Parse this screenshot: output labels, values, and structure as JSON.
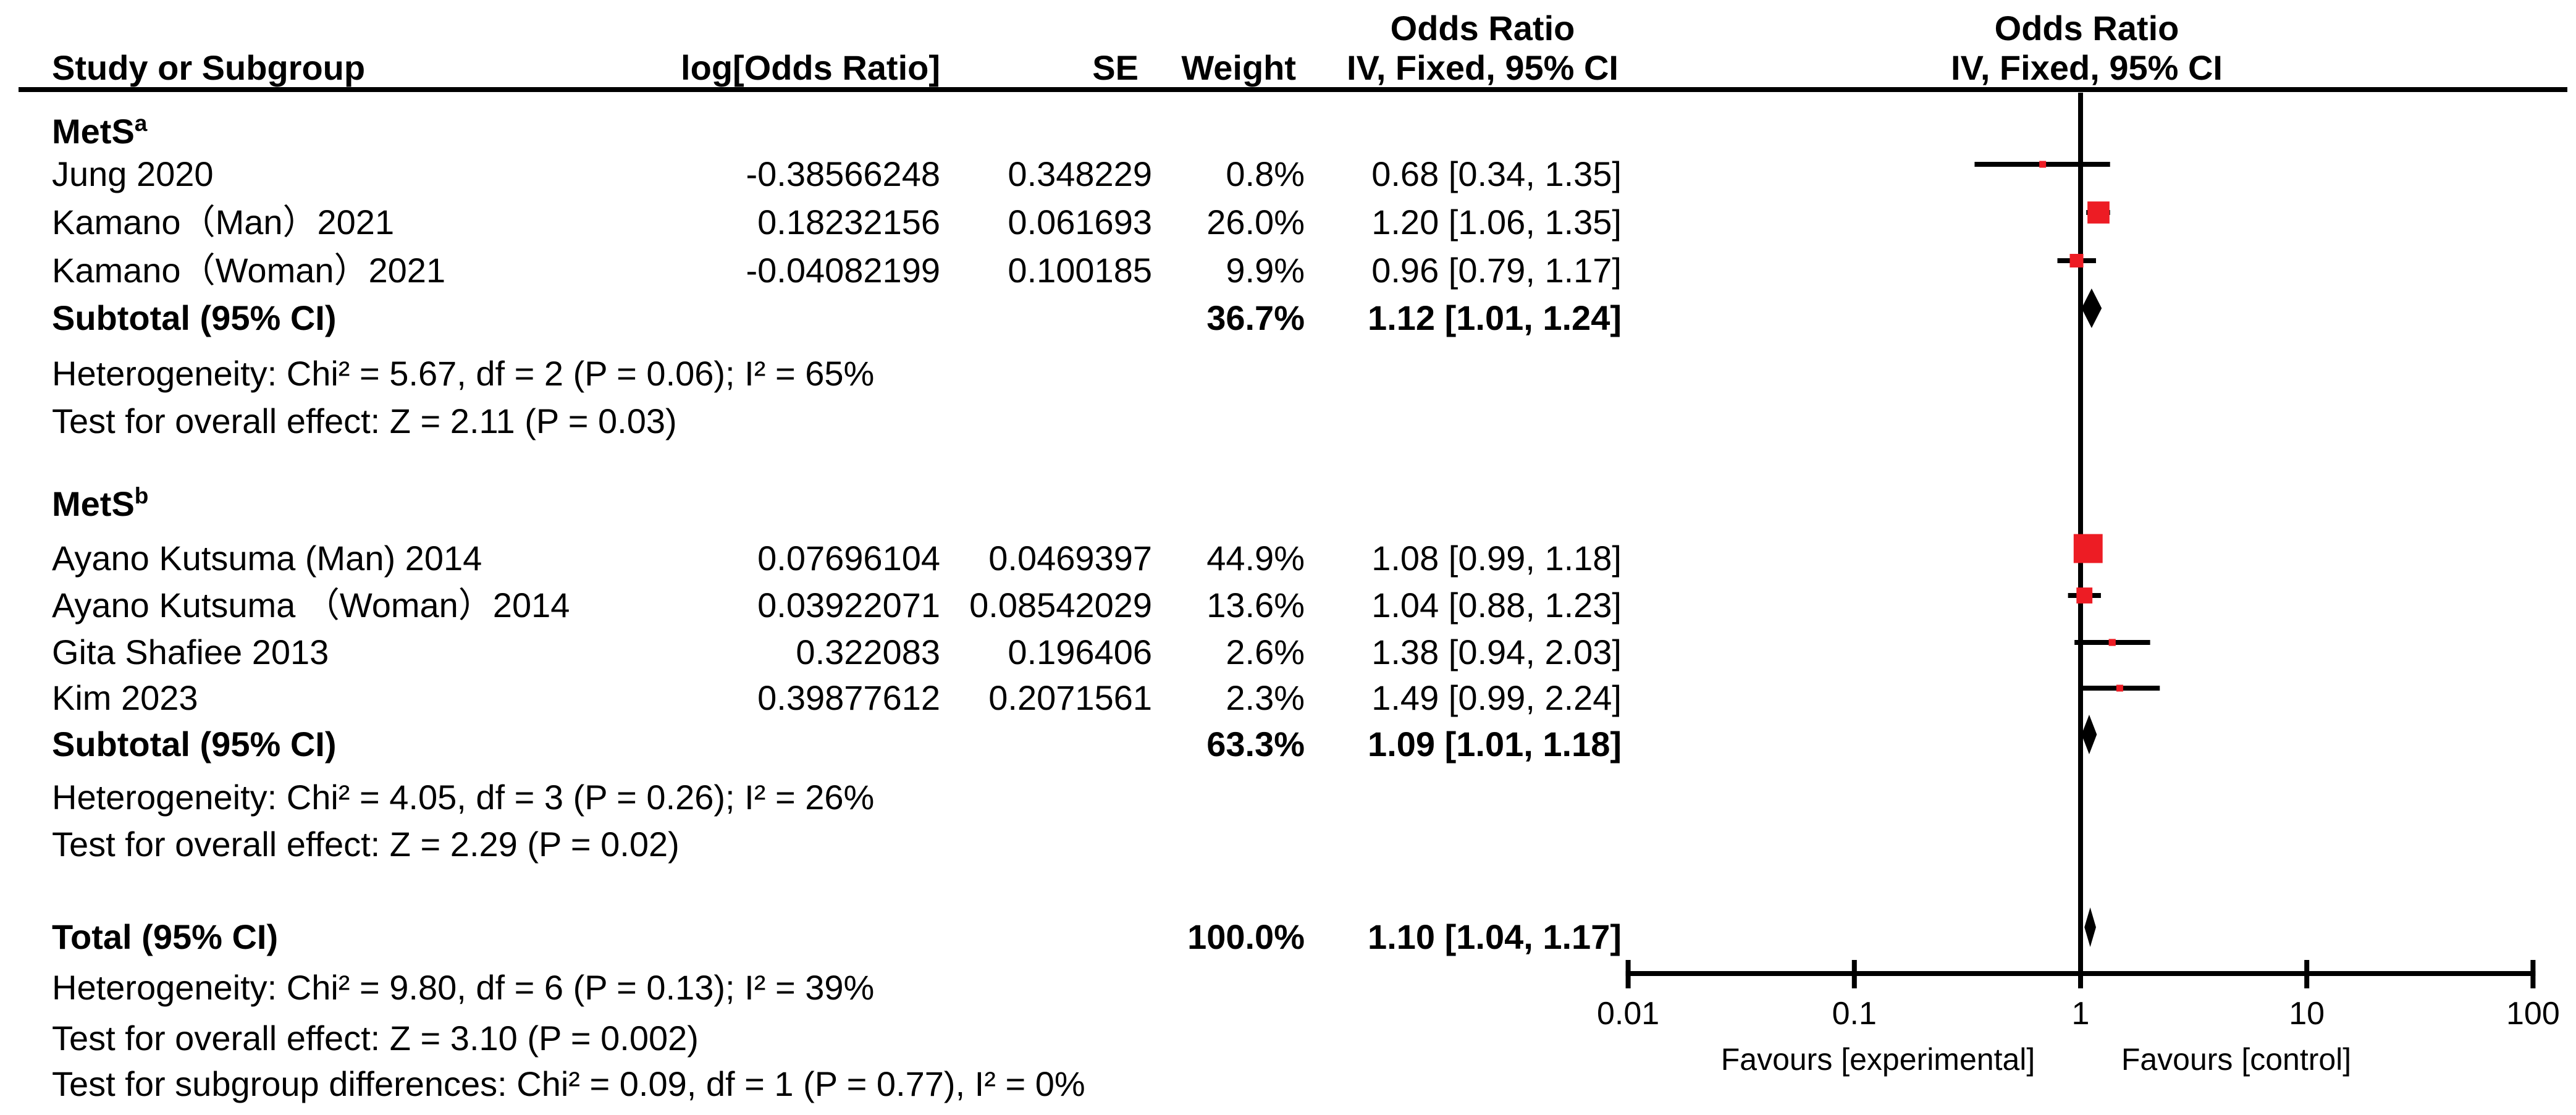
{
  "headers": {
    "study": "Study or Subgroup",
    "log_or": "log[Odds Ratio]",
    "se": "SE",
    "weight": "Weight",
    "or_line1": "Odds Ratio",
    "or_line2": "IV, Fixed, 95% CI",
    "plot_line1": "Odds Ratio",
    "plot_line2": "IV, Fixed, 95% CI"
  },
  "colors": {
    "marker_red": "#ed1c24",
    "ink": "#000000"
  },
  "chart_data": {
    "type": "forest",
    "effect_measure": "Odds Ratio",
    "model": "IV, Fixed, 95% CI",
    "x_axis": {
      "scale": "log",
      "ticks": [
        "0.01",
        "0.1",
        "1",
        "10",
        "100"
      ],
      "tick_values": [
        0.01,
        0.1,
        1,
        10,
        100
      ],
      "favours_left": "Favours [experimental]",
      "favours_right": "Favours [control]"
    },
    "groups": [
      {
        "label": "MetS",
        "sup": "a",
        "studies": [
          {
            "name": "Jung 2020",
            "log_or": "-0.38566248",
            "se": "0.348229",
            "weight": "0.8%",
            "weight_value": 0.8,
            "ci_text": "0.68 [0.34, 1.35]",
            "or": 0.68,
            "lo": 0.34,
            "hi": 1.35
          },
          {
            "name": "Kamano（Man）2021",
            "log_or": "0.18232156",
            "se": "0.061693",
            "weight": "26.0%",
            "weight_value": 26.0,
            "ci_text": "1.20 [1.06, 1.35]",
            "or": 1.2,
            "lo": 1.06,
            "hi": 1.35
          },
          {
            "name": "Kamano（Woman）2021",
            "log_or": "-0.04082199",
            "se": "0.100185",
            "weight": "9.9%",
            "weight_value": 9.9,
            "ci_text": "0.96 [0.79, 1.17]",
            "or": 0.96,
            "lo": 0.79,
            "hi": 1.17
          }
        ],
        "subtotal": {
          "label": "Subtotal (95% CI)",
          "weight": "36.7%",
          "ci_text": "1.12 [1.01, 1.24]",
          "or": 1.12,
          "lo": 1.01,
          "hi": 1.24
        },
        "heterogeneity": "Heterogeneity: Chi² = 5.67, df = 2 (P = 0.06); I² = 65%",
        "overall_effect": "Test for overall effect: Z = 2.11 (P = 0.03)"
      },
      {
        "label": "MetS",
        "sup": "b",
        "studies": [
          {
            "name": "Ayano Kutsuma (Man) 2014",
            "log_or": "0.07696104",
            "se": "0.0469397",
            "weight": "44.9%",
            "weight_value": 44.9,
            "ci_text": "1.08 [0.99, 1.18]",
            "or": 1.08,
            "lo": 0.99,
            "hi": 1.18
          },
          {
            "name": "Ayano Kutsuma （Woman）2014",
            "log_or": "0.03922071",
            "se": "0.08542029",
            "weight": "13.6%",
            "weight_value": 13.6,
            "ci_text": "1.04 [0.88, 1.23]",
            "or": 1.04,
            "lo": 0.88,
            "hi": 1.23
          },
          {
            "name": "Gita Shafiee 2013",
            "log_or": "0.322083",
            "se": "0.196406",
            "weight": "2.6%",
            "weight_value": 2.6,
            "ci_text": "1.38 [0.94, 2.03]",
            "or": 1.38,
            "lo": 0.94,
            "hi": 2.03
          },
          {
            "name": "Kim 2023",
            "log_or": "0.39877612",
            "se": "0.2071561",
            "weight": "2.3%",
            "weight_value": 2.3,
            "ci_text": "1.49 [0.99, 2.24]",
            "or": 1.49,
            "lo": 0.99,
            "hi": 2.24
          }
        ],
        "subtotal": {
          "label": "Subtotal (95% CI)",
          "weight": "63.3%",
          "ci_text": "1.09 [1.01, 1.18]",
          "or": 1.09,
          "lo": 1.01,
          "hi": 1.18
        },
        "heterogeneity": "Heterogeneity: Chi² = 4.05, df = 3 (P = 0.26); I² = 26%",
        "overall_effect": "Test for overall effect: Z = 2.29 (P = 0.02)"
      }
    ],
    "total": {
      "label": "Total (95% CI)",
      "weight": "100.0%",
      "ci_text": "1.10 [1.04, 1.17]",
      "or": 1.1,
      "lo": 1.04,
      "hi": 1.17
    },
    "total_heterogeneity": "Heterogeneity: Chi² = 9.80, df = 6 (P = 0.13); I² = 39%",
    "total_overall_effect": "Test for overall effect: Z = 3.10 (P = 0.002)",
    "subgroup_differences": "Test for subgroup differences: Chi² = 0.09, df = 1 (P = 0.77), I² = 0%"
  }
}
